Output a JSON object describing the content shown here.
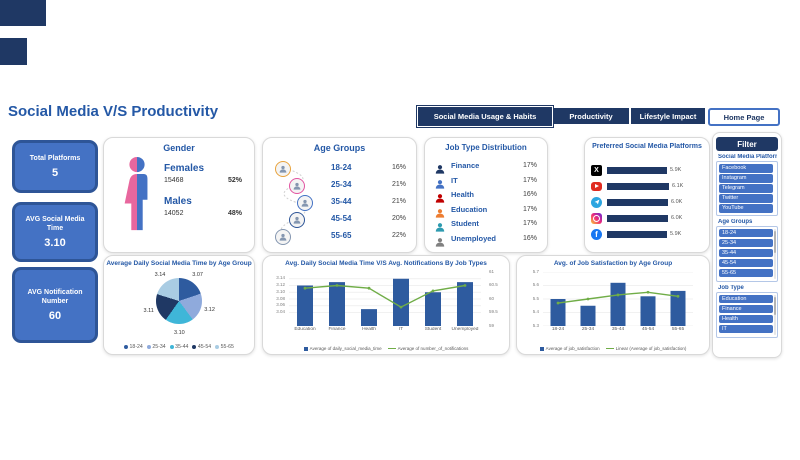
{
  "header": {
    "title": "Social Media V/S Productivity"
  },
  "nav": {
    "tabs": [
      "Social Media Usage & Habits",
      "Productivity",
      "Lifestyle Impact"
    ],
    "home_label": "Home Page"
  },
  "kpis": [
    {
      "label": "Total Platforms",
      "value": "5"
    },
    {
      "label": "AVG Social Media Time",
      "value": "3.10"
    },
    {
      "label": "AVG Notification Number",
      "value": "60"
    }
  ],
  "gender": {
    "title": "Gender",
    "female_label": "Females",
    "female_count": "15468",
    "female_pct": "52%",
    "male_label": "Males",
    "male_count": "14052",
    "male_pct": "48%"
  },
  "age_groups": {
    "title": "Age Groups",
    "rows": [
      {
        "label": "18-24",
        "value": "16%"
      },
      {
        "label": "25-34",
        "value": "21%"
      },
      {
        "label": "35-44",
        "value": "21%"
      },
      {
        "label": "45-54",
        "value": "20%"
      },
      {
        "label": "55-65",
        "value": "22%"
      }
    ]
  },
  "job_types": {
    "title": "Job Type Distribution",
    "rows": [
      {
        "label": "Finance",
        "value": "17%"
      },
      {
        "label": "IT",
        "value": "17%"
      },
      {
        "label": "Health",
        "value": "16%"
      },
      {
        "label": "Education",
        "value": "17%"
      },
      {
        "label": "Student",
        "value": "17%"
      },
      {
        "label": "Unemployed",
        "value": "16%"
      }
    ]
  },
  "platforms": {
    "rows": [
      {
        "name": "X (Twitter)",
        "glyph": "X"
      },
      {
        "name": "YouTube"
      },
      {
        "name": "Telegram"
      },
      {
        "name": "Instagram"
      },
      {
        "name": "Facebook",
        "glyph": "f"
      }
    ]
  },
  "filter": {
    "button": "Filter",
    "groups": [
      {
        "label": "Social Media Platforms",
        "items": [
          "Facebook",
          "Instagram",
          "Telegram",
          "Twitter",
          "YouTube"
        ]
      },
      {
        "label": "Age Groups",
        "items": [
          "18-24",
          "25-34",
          "35-44",
          "45-54",
          "55-65"
        ]
      },
      {
        "label": "Job Type",
        "items": [
          "Education",
          "Finance",
          "Health",
          "IT"
        ]
      }
    ]
  },
  "chart_data": [
    {
      "id": "preferred_platforms",
      "type": "bar",
      "orientation": "horizontal",
      "title": "Preferred Social Media Platforms",
      "categories": [
        "X (Twitter)",
        "YouTube",
        "Telegram",
        "Instagram",
        "Facebook"
      ],
      "values": [
        5900,
        6100,
        6000,
        6000,
        5900
      ],
      "value_labels": [
        "5.9K",
        "6.1K",
        "6.0K",
        "6.0K",
        "5.9K"
      ]
    },
    {
      "id": "avg_daily_time_by_age",
      "type": "pie",
      "title": "Average Daily Social Media Time by Age Group",
      "categories": [
        "18-24",
        "25-34",
        "35-44",
        "45-54",
        "55-65"
      ],
      "values": [
        3.07,
        3.12,
        3.1,
        3.11,
        3.14
      ],
      "value_labels": [
        "3.07",
        "3.12",
        "3.10",
        "3.11",
        "3.14"
      ],
      "colors": [
        "#2E5B9F",
        "#8FAADC",
        "#3FB6D8",
        "#1F3864",
        "#A9CCE3"
      ],
      "legend_position": "bottom"
    },
    {
      "id": "time_vs_notifications_by_job",
      "type": "bar+line",
      "title": "Avg. Daily Social Media Time V/S Avg. Notifications By Job Types",
      "categories": [
        "Education",
        "Finance",
        "Health",
        "IT",
        "Student",
        "Unemployed"
      ],
      "series": [
        {
          "name": "Average of daily_social_media_time",
          "type": "bar",
          "color": "#2E5B9F",
          "axis": "left",
          "values": [
            3.12,
            3.13,
            3.05,
            3.14,
            3.1,
            3.13
          ]
        },
        {
          "name": "Average of number_of_notifications",
          "type": "line",
          "color": "#70AD47",
          "axis": "right",
          "values": [
            60.4,
            60.5,
            60.4,
            59.7,
            60.3,
            60.5
          ]
        }
      ],
      "left_axis": {
        "min": 3.0,
        "max": 3.16,
        "ticks": [
          "3.14",
          "3.12",
          "3.10",
          "3.08",
          "3.06",
          "3.04"
        ]
      },
      "right_axis": {
        "min": 59,
        "max": 61,
        "ticks": [
          "61",
          "60.5",
          "60",
          "59.5",
          "59"
        ]
      }
    },
    {
      "id": "job_satisfaction_by_age",
      "type": "bar+line",
      "title": "Avg. of Job Satisfaction by Age Group",
      "categories": [
        "18-24",
        "25-34",
        "35-44",
        "45-54",
        "55-65"
      ],
      "series": [
        {
          "name": "Average of job_satisfaction",
          "type": "bar",
          "color": "#2E5B9F",
          "axis": "left",
          "values": [
            5.5,
            5.45,
            5.62,
            5.52,
            5.56
          ]
        },
        {
          "name": "Linear (Average of job_satisfaction)",
          "type": "line",
          "color": "#70AD47",
          "axis": "left",
          "values": [
            5.47,
            5.5,
            5.53,
            5.55,
            5.52
          ]
        }
      ],
      "left_axis": {
        "min": 5.3,
        "max": 5.7,
        "ticks": [
          "5.7",
          "5.6",
          "5.5",
          "5.4",
          "5.3"
        ]
      }
    }
  ]
}
